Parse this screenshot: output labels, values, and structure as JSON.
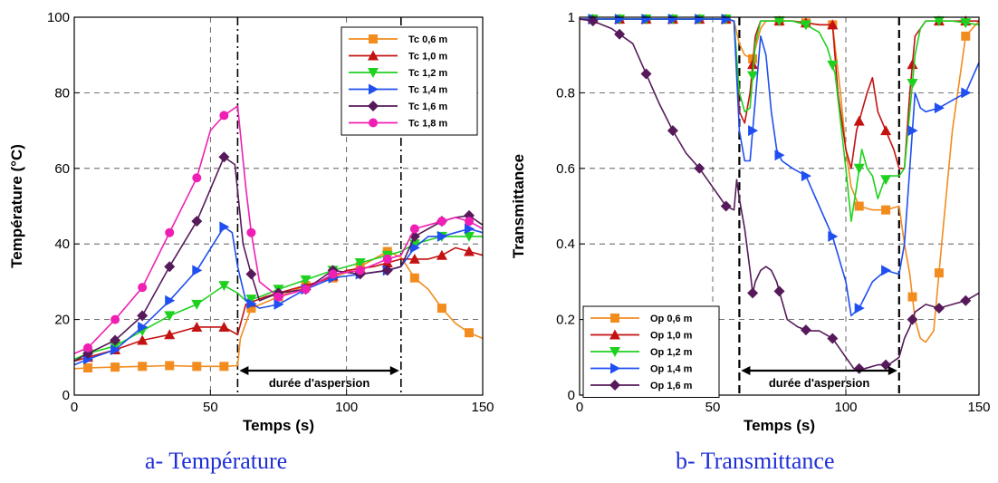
{
  "chart_data": [
    {
      "type": "line",
      "caption": "a- Température",
      "xlabel": "Temps (s)",
      "ylabel": "Température (°C)",
      "xlim": [
        0,
        150
      ],
      "ylim": [
        0,
        100
      ],
      "xticks": [
        0,
        50,
        100,
        150
      ],
      "yticks": [
        0,
        20,
        40,
        60,
        80,
        100
      ],
      "grid": "dashed",
      "legend_position": "top-right",
      "annotations": [
        {
          "text": "durée d'aspersion",
          "x_from": 60,
          "x_to": 120,
          "y": 9
        }
      ],
      "vlines_dashdot": [
        60,
        120
      ],
      "series": [
        {
          "name": "Tc 0,6 m",
          "color": "#f28c1f",
          "marker": "square",
          "x": [
            0,
            5,
            15,
            25,
            35,
            45,
            55,
            60,
            61,
            65,
            75,
            85,
            95,
            105,
            115,
            120,
            125,
            130,
            135,
            140,
            145,
            150
          ],
          "y": [
            7,
            7.2,
            7.4,
            7.6,
            7.8,
            7.6,
            7.6,
            7.8,
            15,
            23,
            26,
            29,
            31,
            34,
            38,
            36.5,
            31,
            28,
            23,
            19,
            16.5,
            15
          ]
        },
        {
          "name": "Tc 1,0 m",
          "color": "#c41212",
          "marker": "triangle-up",
          "x": [
            0,
            5,
            15,
            25,
            35,
            45,
            55,
            60,
            63,
            70,
            80,
            90,
            100,
            110,
            120,
            125,
            130,
            135,
            140,
            145,
            150
          ],
          "y": [
            9,
            10,
            12,
            14.5,
            16,
            18,
            18,
            16,
            24,
            26,
            28,
            30,
            33,
            34,
            36,
            36,
            36,
            37,
            39,
            38,
            37
          ]
        },
        {
          "name": "Tc 1,2 m",
          "color": "#1fd11f",
          "marker": "triangle-down",
          "x": [
            0,
            5,
            15,
            25,
            35,
            45,
            55,
            60,
            63,
            68,
            75,
            85,
            95,
            105,
            115,
            120,
            125,
            130,
            135,
            140,
            145,
            150
          ],
          "y": [
            9.5,
            11,
            13,
            17,
            21,
            24,
            29,
            27,
            25,
            26,
            28,
            30.5,
            33,
            35,
            37,
            38,
            40,
            41,
            42,
            42,
            42,
            42
          ]
        },
        {
          "name": "Tc 1,4 m",
          "color": "#1f4ff0",
          "marker": "triangle-right",
          "x": [
            0,
            5,
            15,
            25,
            35,
            45,
            55,
            58,
            60,
            63,
            68,
            75,
            85,
            95,
            105,
            115,
            120,
            125,
            130,
            135,
            140,
            145,
            150
          ],
          "y": [
            8,
            9.5,
            12,
            18,
            25,
            33,
            44.5,
            43,
            34,
            25,
            23,
            24,
            28,
            31,
            32,
            33,
            34,
            39,
            42,
            42,
            43,
            44,
            43
          ]
        },
        {
          "name": "Tc 1,6 m",
          "color": "#561a5a",
          "marker": "diamond",
          "x": [
            0,
            5,
            15,
            25,
            35,
            45,
            55,
            59,
            62,
            65,
            68,
            75,
            85,
            95,
            105,
            115,
            120,
            125,
            130,
            135,
            140,
            145,
            150
          ],
          "y": [
            9,
            11,
            14.5,
            21,
            34,
            46,
            63,
            61,
            40,
            32,
            25,
            27,
            28,
            33,
            32,
            33,
            34,
            42,
            44,
            46,
            47,
            47.5,
            45
          ]
        },
        {
          "name": "Tc 1,8 m",
          "color": "#f01fb4",
          "marker": "circle",
          "x": [
            0,
            5,
            15,
            25,
            35,
            45,
            50,
            55,
            60,
            63,
            65,
            68,
            75,
            85,
            95,
            105,
            115,
            120,
            125,
            130,
            135,
            140,
            145,
            150
          ],
          "y": [
            11,
            12.5,
            20,
            28.5,
            43,
            57.5,
            70,
            74,
            76.5,
            55,
            43,
            30,
            26,
            28,
            32,
            33,
            36,
            37,
            44,
            45,
            46,
            47,
            46,
            44
          ]
        }
      ]
    },
    {
      "type": "line",
      "caption": "b- Transmittance",
      "xlabel": "Temps (s)",
      "ylabel": "Transmittance",
      "xlim": [
        0,
        150
      ],
      "ylim": [
        0,
        1
      ],
      "xticks": [
        0,
        50,
        100,
        150
      ],
      "yticks": [
        0,
        0.2,
        0.4,
        0.6,
        0.8,
        1
      ],
      "ytick_labels": [
        "0",
        "0.2",
        "0.4",
        "0.6",
        "0.8",
        "1"
      ],
      "grid": "dashed",
      "legend_position": "bottom-left",
      "annotations": [
        {
          "text": "durée d'aspersion",
          "x_from": 60,
          "x_to": 120,
          "y": 0.09
        }
      ],
      "vlines_dashed": [
        60,
        120
      ],
      "series": [
        {
          "name": "Op 0,6 m",
          "color": "#f28c1f",
          "marker": "square",
          "x": [
            0,
            5,
            15,
            30,
            45,
            55,
            58,
            60,
            62,
            65,
            68,
            70,
            80,
            90,
            95,
            98,
            100,
            102,
            105,
            110,
            115,
            120,
            122,
            124,
            126,
            128,
            130,
            133,
            136,
            140,
            145,
            150
          ],
          "y": [
            0.995,
            0.995,
            0.995,
            0.995,
            0.995,
            0.995,
            0.99,
            0.93,
            0.9,
            0.89,
            0.97,
            0.99,
            0.99,
            0.98,
            0.98,
            0.8,
            0.65,
            0.55,
            0.5,
            0.49,
            0.49,
            0.5,
            0.4,
            0.32,
            0.2,
            0.15,
            0.14,
            0.17,
            0.4,
            0.7,
            0.95,
            0.99
          ]
        },
        {
          "name": "Op 1,0 m",
          "color": "#c41212",
          "marker": "triangle-up",
          "x": [
            0,
            5,
            20,
            40,
            55,
            58,
            60,
            62,
            64,
            66,
            68,
            72,
            80,
            90,
            95,
            97,
            100,
            102,
            104,
            106,
            108,
            110,
            112,
            115,
            118,
            120,
            122,
            124,
            126,
            130,
            140,
            150
          ],
          "y": [
            0.995,
            0.995,
            0.995,
            0.995,
            0.995,
            0.99,
            0.75,
            0.72,
            0.8,
            0.95,
            0.99,
            0.99,
            0.99,
            0.98,
            0.98,
            0.8,
            0.65,
            0.6,
            0.7,
            0.75,
            0.8,
            0.84,
            0.75,
            0.7,
            0.65,
            0.6,
            0.6,
            0.8,
            0.95,
            0.99,
            0.99,
            0.99
          ]
        },
        {
          "name": "Op 1,2 m",
          "color": "#1fd11f",
          "marker": "triangle-down",
          "x": [
            0,
            5,
            20,
            40,
            55,
            58,
            60,
            62,
            64,
            66,
            68,
            70,
            75,
            80,
            85,
            90,
            93,
            96,
            100,
            102,
            104,
            106,
            108,
            110,
            112,
            114,
            116,
            118,
            120,
            122,
            124,
            126,
            128,
            130,
            135,
            140,
            150
          ],
          "y": [
            0.995,
            0.995,
            0.995,
            0.995,
            0.995,
            0.99,
            0.8,
            0.75,
            0.76,
            0.93,
            0.99,
            0.99,
            0.99,
            0.99,
            0.98,
            0.96,
            0.92,
            0.85,
            0.6,
            0.46,
            0.55,
            0.65,
            0.6,
            0.58,
            0.52,
            0.56,
            0.58,
            0.58,
            0.58,
            0.6,
            0.75,
            0.9,
            0.97,
            0.99,
            0.99,
            0.99,
            0.98
          ]
        },
        {
          "name": "Op 1,4 m",
          "color": "#1f4ff0",
          "marker": "triangle-right",
          "x": [
            0,
            5,
            20,
            40,
            55,
            58,
            60,
            62,
            64,
            66,
            68,
            70,
            72,
            74,
            76,
            80,
            85,
            90,
            95,
            100,
            102,
            105,
            110,
            115,
            120,
            122,
            124,
            126,
            128,
            130,
            135,
            140,
            145,
            150
          ],
          "y": [
            0.995,
            0.995,
            0.995,
            0.995,
            0.995,
            0.99,
            0.7,
            0.62,
            0.62,
            0.78,
            0.95,
            0.9,
            0.75,
            0.65,
            0.62,
            0.6,
            0.58,
            0.5,
            0.42,
            0.3,
            0.21,
            0.23,
            0.3,
            0.33,
            0.32,
            0.4,
            0.6,
            0.8,
            0.76,
            0.75,
            0.76,
            0.78,
            0.8,
            0.88
          ]
        },
        {
          "name": "Op 1,6 m",
          "color": "#561a5a",
          "marker": "diamond",
          "x": [
            0,
            5,
            12,
            20,
            25,
            30,
            35,
            40,
            45,
            50,
            55,
            58,
            59,
            60,
            62,
            64,
            65,
            66,
            68,
            70,
            72,
            74,
            76,
            78,
            82,
            86,
            90,
            95,
            100,
            103,
            107,
            112,
            116,
            120,
            122,
            124,
            126,
            130,
            135,
            140,
            145,
            150
          ],
          "y": [
            0.995,
            0.99,
            0.97,
            0.93,
            0.85,
            0.77,
            0.7,
            0.64,
            0.6,
            0.55,
            0.5,
            0.49,
            0.57,
            0.52,
            0.44,
            0.33,
            0.27,
            0.3,
            0.33,
            0.34,
            0.33,
            0.3,
            0.25,
            0.2,
            0.18,
            0.17,
            0.17,
            0.15,
            0.1,
            0.07,
            0.07,
            0.08,
            0.08,
            0.1,
            0.15,
            0.18,
            0.22,
            0.24,
            0.23,
            0.24,
            0.25,
            0.27
          ]
        }
      ]
    }
  ]
}
